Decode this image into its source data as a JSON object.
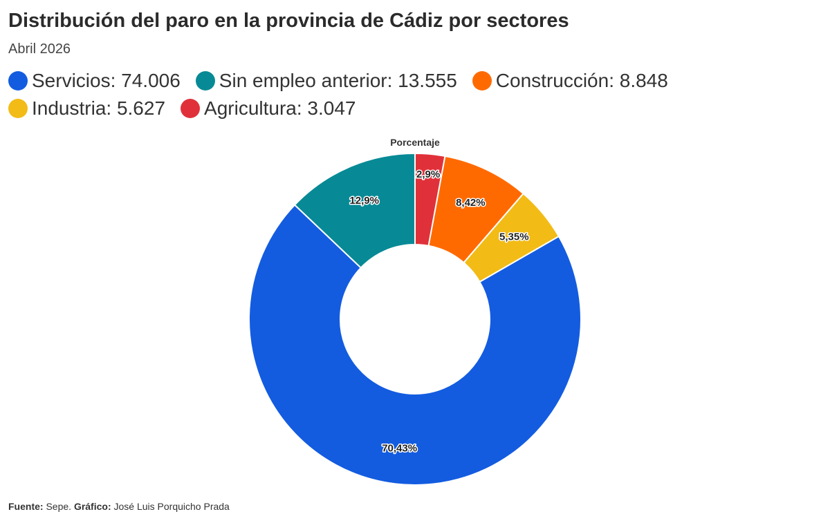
{
  "header": {
    "title": "Distribución del paro en la provincia de Cádiz por sectores",
    "subtitle": "Abril 2026"
  },
  "footer": {
    "source_label": "Fuente:",
    "source_value": "Sepe.",
    "credit_label": "Gráfico:",
    "credit_value": "José Luis Porquicho Prada"
  },
  "chart_data": {
    "type": "pie",
    "variant": "donut",
    "title": "Porcentaje",
    "legend_position": "top-left",
    "slices": [
      {
        "name": "Agricultura",
        "value": 3047,
        "percent_label": "2,9%",
        "legend_label": "Agricultura: 3.047",
        "color": "#E0313A"
      },
      {
        "name": "Construcción",
        "value": 8848,
        "percent_label": "8,42%",
        "legend_label": "Construcción: 8.848",
        "color": "#FF6A00"
      },
      {
        "name": "Industria",
        "value": 5627,
        "percent_label": "5,35%",
        "legend_label": "Industria: 5.627",
        "color": "#F2BB16"
      },
      {
        "name": "Servicios",
        "value": 74006,
        "percent_label": "70,43%",
        "legend_label": "Servicios: 74.006",
        "color": "#135CE0"
      },
      {
        "name": "Sin empleo anterior",
        "value": 13555,
        "percent_label": "12,9%",
        "legend_label": "Sin empleo anterior: 13.555",
        "color": "#078A96"
      }
    ],
    "legend_order": [
      "Servicios",
      "Sin empleo anterior",
      "Construcción",
      "Industria",
      "Agricultura"
    ]
  }
}
